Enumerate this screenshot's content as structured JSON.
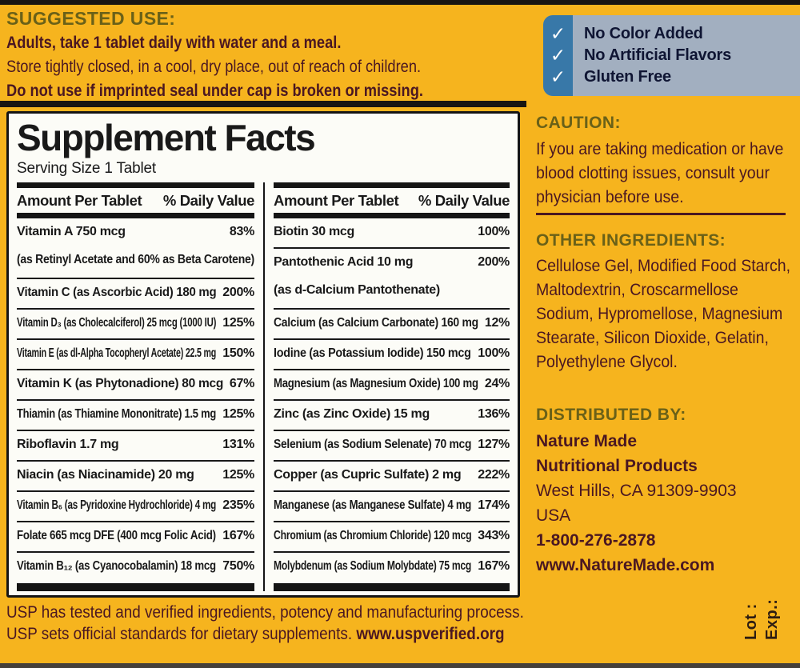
{
  "label": {
    "colors": {
      "background_yellow": "#F6B41E",
      "heading_olive": "#6A6118",
      "body_maroon": "#4A1722",
      "badge_strip_blue": "#3878A8",
      "badge_panel_blue": "#A2AFC0",
      "badge_text_navy": "#0F1533",
      "panel_white": "#FCFCF7",
      "facts_black": "#151515"
    },
    "suggested_use": {
      "heading": "SUGGESTED USE:",
      "line1": "Adults, take 1 tablet daily with water and a meal.",
      "line2": "Store tightly closed, in a cool, dry place, out of reach of children.",
      "line3": "Do not use if imprinted seal under cap is broken or missing."
    },
    "badges": {
      "check_glyph": "✓",
      "items": [
        "No Color Added",
        "No Artificial Flavors",
        "Gluten Free"
      ]
    },
    "facts": {
      "title": "Supplement Facts",
      "serving": "Serving Size 1 Tablet",
      "col_amount": "Amount Per Tablet",
      "col_dv": "% Daily Value",
      "left_rows": [
        {
          "name": "Vitamin A  750 mcg",
          "sub": "(as Retinyl Acetate and 60% as Beta Carotene)",
          "dv": "83%"
        },
        {
          "name": "Vitamin C (as Ascorbic Acid)  180 mg",
          "dv": "200%"
        },
        {
          "name": "Vitamin D₃ (as Cholecalciferol)  25 mcg (1000 IU)",
          "dv": "125%"
        },
        {
          "name": "Vitamin E (as dl-Alpha Tocopheryl Acetate)  22.5 mg",
          "dv": "150%"
        },
        {
          "name": "Vitamin K (as Phytonadione)  80 mcg",
          "dv": "67%"
        },
        {
          "name": "Thiamin (as Thiamine Mononitrate)  1.5 mg",
          "dv": "125%"
        },
        {
          "name": "Riboflavin  1.7 mg",
          "dv": "131%"
        },
        {
          "name": "Niacin (as Niacinamide)  20 mg",
          "dv": "125%"
        },
        {
          "name": "Vitamin B₆ (as Pyridoxine Hydrochloride)  4 mg",
          "dv": "235%"
        },
        {
          "name": "Folate  665 mcg DFE (400 mcg Folic Acid)",
          "dv": "167%"
        },
        {
          "name": "Vitamin B₁₂ (as Cyanocobalamin)  18 mcg",
          "dv": "750%"
        }
      ],
      "right_rows": [
        {
          "name": "Biotin  30 mcg",
          "dv": "100%"
        },
        {
          "name": "Pantothenic Acid  10 mg",
          "sub": "(as d-Calcium Pantothenate)",
          "dv": "200%"
        },
        {
          "name": "Calcium (as Calcium Carbonate)  160 mg",
          "dv": "12%"
        },
        {
          "name": "Iodine (as Potassium Iodide)  150 mcg",
          "dv": "100%"
        },
        {
          "name": "Magnesium (as Magnesium Oxide)  100 mg",
          "dv": "24%"
        },
        {
          "name": "Zinc (as Zinc Oxide)  15 mg",
          "dv": "136%"
        },
        {
          "name": "Selenium (as Sodium Selenate)  70 mcg",
          "dv": "127%"
        },
        {
          "name": "Copper (as Cupric Sulfate)  2 mg",
          "dv": "222%"
        },
        {
          "name": "Manganese (as Manganese Sulfate)  4 mg",
          "dv": "174%"
        },
        {
          "name": "Chromium (as Chromium Chloride)  120 mcg",
          "dv": "343%"
        },
        {
          "name": "Molybdenum (as Sodium Molybdate)  75 mcg",
          "dv": "167%"
        }
      ]
    },
    "caution": {
      "heading": "CAUTION:",
      "text": "If you are taking medication or have blood clotting issues, consult your physician before use."
    },
    "other_ingredients": {
      "heading": "OTHER INGREDIENTS:",
      "text": "Cellulose Gel, Modified Food Starch, Maltodextrin, Croscarmellose Sodium, Hypromellose, Magnesium Stearate, Silicon Dioxide, Gelatin, Polyethylene Glycol."
    },
    "distributed_by": {
      "heading": "DISTRIBUTED BY:",
      "lines": [
        {
          "text": "Nature Made",
          "bold": true
        },
        {
          "text": "Nutritional Products",
          "bold": true
        },
        {
          "text": "West Hills, CA 91309-9903",
          "bold": false
        },
        {
          "text": "USA",
          "bold": false
        },
        {
          "text": "1-800-276-2878",
          "bold": true
        },
        {
          "text": "www.NatureMade.com",
          "bold": true
        }
      ]
    },
    "usp": {
      "line1": "USP has tested and verified ingredients, potency and manufacturing process.",
      "line2_text": "USP sets official standards for dietary supplements. ",
      "line2_link": "www.uspverified.org"
    },
    "lot_label": "Lot :",
    "exp_label": "Exp.:"
  }
}
